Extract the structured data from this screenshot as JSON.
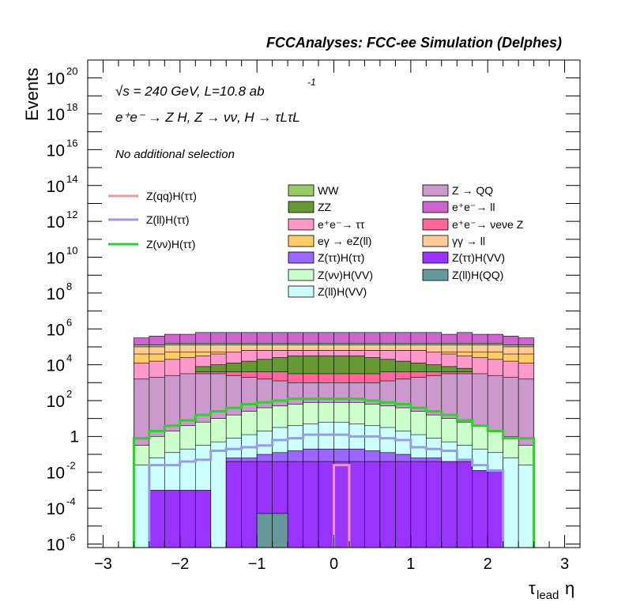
{
  "header": {
    "title": "FCCAnalyses: FCC-ee Simulation (Delphes)",
    "energy_line": "√s = 240 GeV, L=10.8 ab",
    "energy_sup": "-1",
    "process": "e⁺e⁻ → Z H, Z → νν, H → τLτL",
    "selection": "No additional selection"
  },
  "axes": {
    "ylabel": "Events",
    "xlabel_main": "τ",
    "xlabel_sub": "lead",
    "xlabel_tail": "η",
    "x_ticks": [
      -3,
      -2,
      -1,
      0,
      1,
      2,
      3
    ],
    "x_tick_labels": [
      "−3",
      "−2",
      "−1",
      "0",
      "1",
      "2",
      "3"
    ],
    "y_ticks": [
      {
        "exp": -6,
        "label": "10",
        "sup": "-6"
      },
      {
        "exp": -4,
        "label": "10",
        "sup": "-4"
      },
      {
        "exp": -2,
        "label": "10",
        "sup": "-2"
      },
      {
        "exp": 0,
        "label": "1",
        "sup": ""
      },
      {
        "exp": 2,
        "label": "10",
        "sup": "2"
      },
      {
        "exp": 4,
        "label": "10",
        "sup": "4"
      },
      {
        "exp": 6,
        "label": "10",
        "sup": "6"
      },
      {
        "exp": 8,
        "label": "10",
        "sup": "8"
      },
      {
        "exp": 10,
        "label": "10",
        "sup": "10"
      },
      {
        "exp": 12,
        "label": "10",
        "sup": "12"
      },
      {
        "exp": 14,
        "label": "10",
        "sup": "14"
      },
      {
        "exp": 16,
        "label": "10",
        "sup": "16"
      },
      {
        "exp": 18,
        "label": "10",
        "sup": "18"
      },
      {
        "exp": 20,
        "label": "10",
        "sup": "20"
      }
    ]
  },
  "legend_lines": [
    {
      "label": "Z(qq)H(ττ)",
      "color": "#f59a9a"
    },
    {
      "label": "Z(ll)H(ττ)",
      "color": "#9999ee"
    },
    {
      "label": "Z(νν)H(ττ)",
      "color": "#33cc33"
    }
  ],
  "legend_fills_col1": [
    {
      "label": "WW",
      "color": "#99cc66"
    },
    {
      "label": "ZZ",
      "color": "#669933"
    },
    {
      "label": "e⁺e⁻→ ττ",
      "color": "#ff99cc"
    },
    {
      "label": "eγ → eZ(ll)",
      "color": "#ffcc66"
    },
    {
      "label": "Z(ττ)H(ττ)",
      "color": "#9966ff"
    },
    {
      "label": "Z(νν)H(VV)",
      "color": "#ccffcc"
    },
    {
      "label": "Z(ll)H(VV)",
      "color": "#ccffff"
    }
  ],
  "legend_fills_col2": [
    {
      "label": "Z → QQ",
      "color": "#cc99cc"
    },
    {
      "label": "e⁺e⁻→ ll",
      "color": "#cc66cc"
    },
    {
      "label": "e⁺e⁻→ νeνe Z",
      "color": "#ff6699"
    },
    {
      "label": "γγ → ll",
      "color": "#ffcc99"
    },
    {
      "label": "Z(ττ)H(VV)",
      "color": "#9933ff"
    },
    {
      "label": "Z(ll)H(QQ)",
      "color": "#669999"
    }
  ],
  "chart_data": {
    "type": "histogram (stacked, log-y)",
    "xlim": [
      -3.2,
      3.2
    ],
    "ylim_log10": [
      -6.2,
      21
    ],
    "log_y": true,
    "grid": false,
    "bin_edges": [
      -2.6,
      -2.4,
      -2.2,
      -2.0,
      -1.8,
      -1.6,
      -1.4,
      -1.2,
      -1.0,
      -0.8,
      -0.6,
      -0.4,
      -0.2,
      0.0,
      0.2,
      0.4,
      0.6,
      0.8,
      1.0,
      1.2,
      1.4,
      1.6,
      1.8,
      2.0,
      2.2,
      2.4,
      2.6
    ],
    "stack_log10_tops": [
      {
        "name": "Z(ll)H(QQ)",
        "color": "#669999",
        "tops": [
          -99,
          -99,
          -99,
          -99,
          -99,
          -99,
          -99,
          -99,
          -4.3,
          -4.3,
          -99,
          -99,
          -99,
          -99,
          -99,
          -99,
          -99,
          -99,
          -99,
          -99,
          -99,
          -99,
          -99,
          -99,
          -99,
          -99
        ]
      },
      {
        "name": "Z(ττ)H(VV)",
        "color": "#9933ff",
        "tops": [
          -99,
          -3.0,
          -3.0,
          -3.0,
          -3.0,
          -99,
          -1.4,
          -1.4,
          -1.4,
          -1.4,
          -1.4,
          -1.4,
          -1.4,
          -1.4,
          -1.4,
          -1.4,
          -1.4,
          -1.4,
          -1.4,
          -1.4,
          -1.4,
          -1.4,
          -1.9,
          -1.9,
          -99,
          -99
        ]
      },
      {
        "name": "Z(ττ)H(ττ)",
        "color": "#9966ff",
        "tops": [
          -99,
          -99,
          -99,
          -99,
          -99,
          -99,
          -1.2,
          -1.2,
          -1.0,
          -0.9,
          -0.8,
          -0.7,
          -0.7,
          -0.7,
          -0.7,
          -0.8,
          -0.9,
          -1.0,
          -1.2,
          -1.2,
          -1.4,
          -1.4,
          -99,
          -99,
          -99,
          -99
        ]
      },
      {
        "name": "Z(ll)H(VV)",
        "color": "#ccffff",
        "tops": [
          -1.6,
          -1.2,
          -0.9,
          -0.7,
          -0.5,
          -0.3,
          -0.1,
          0.1,
          0.3,
          0.5,
          0.6,
          0.7,
          0.8,
          0.8,
          0.7,
          0.6,
          0.5,
          0.3,
          0.1,
          -0.1,
          -0.3,
          -0.5,
          -0.7,
          -0.9,
          -1.2,
          -1.6
        ]
      },
      {
        "name": "Z(νν)H(VV)",
        "color": "#ccffcc",
        "tops": [
          -0.5,
          0.0,
          0.3,
          0.6,
          0.8,
          1.0,
          1.2,
          1.4,
          1.6,
          1.7,
          1.8,
          1.9,
          1.9,
          1.9,
          1.9,
          1.8,
          1.7,
          1.6,
          1.4,
          1.2,
          1.0,
          0.8,
          0.6,
          0.3,
          0.0,
          -0.5
        ]
      },
      {
        "name": "Z → QQ",
        "color": "#cc99cc",
        "tops": [
          3.2,
          3.3,
          3.4,
          3.5,
          3.5,
          3.5,
          3.4,
          3.3,
          3.2,
          3.1,
          3.0,
          3.0,
          3.0,
          3.0,
          3.0,
          3.0,
          3.1,
          3.2,
          3.3,
          3.4,
          3.5,
          3.5,
          3.5,
          3.4,
          3.3,
          3.2
        ]
      },
      {
        "name": "e⁺e⁻→ νeνe Z",
        "color": "#ff6699",
        "tops": [
          -99,
          -99,
          -99,
          -99,
          3.6,
          3.6,
          3.6,
          3.6,
          3.6,
          3.6,
          3.5,
          3.5,
          3.5,
          3.5,
          3.5,
          3.5,
          3.6,
          3.6,
          3.6,
          3.6,
          3.6,
          3.6,
          -99,
          -99,
          -99,
          -99
        ]
      },
      {
        "name": "ZZ",
        "color": "#669933",
        "tops": [
          -99,
          -99,
          -99,
          -99,
          3.9,
          4.0,
          4.1,
          4.2,
          4.3,
          4.4,
          4.5,
          4.5,
          4.5,
          4.5,
          4.5,
          4.4,
          4.3,
          4.2,
          4.1,
          4.0,
          3.9,
          3.8,
          -99,
          -99,
          -99,
          -99
        ]
      },
      {
        "name": "e⁺e⁻→ ττ",
        "color": "#ff99cc",
        "tops": [
          4.1,
          4.2,
          4.3,
          4.4,
          4.5,
          4.6,
          4.7,
          4.8,
          4.8,
          4.8,
          4.8,
          4.8,
          4.8,
          4.8,
          4.8,
          4.8,
          4.8,
          4.8,
          4.8,
          4.7,
          4.6,
          4.5,
          4.4,
          4.3,
          4.2,
          4.1
        ]
      },
      {
        "name": "eγ → eZ(ll)",
        "color": "#ffcc66",
        "tops": [
          4.6,
          4.6,
          4.7,
          4.7,
          4.7,
          4.7,
          4.7,
          4.8,
          4.8,
          4.8,
          4.8,
          4.8,
          4.8,
          4.8,
          4.8,
          4.8,
          4.8,
          4.8,
          4.8,
          4.7,
          4.7,
          4.7,
          4.7,
          4.7,
          4.6,
          4.6
        ]
      },
      {
        "name": "γγ → ll",
        "color": "#ffcc99",
        "tops": [
          5.0,
          5.0,
          5.1,
          5.1,
          5.1,
          5.1,
          5.1,
          5.1,
          5.1,
          5.1,
          5.1,
          5.1,
          5.1,
          5.1,
          5.1,
          5.1,
          5.1,
          5.1,
          5.1,
          5.1,
          5.1,
          5.1,
          5.1,
          5.1,
          5.0,
          5.0
        ]
      },
      {
        "name": "WW",
        "color": "#99cc66",
        "tops": [
          5.1,
          5.1,
          5.2,
          5.2,
          5.2,
          5.2,
          5.2,
          5.2,
          5.2,
          5.2,
          5.2,
          5.2,
          5.2,
          5.2,
          5.2,
          5.2,
          5.2,
          5.2,
          5.2,
          5.2,
          5.2,
          5.2,
          5.2,
          5.2,
          5.1,
          5.1
        ]
      },
      {
        "name": "e⁺e⁻→ ll",
        "color": "#cc66cc",
        "tops": [
          5.5,
          5.6,
          5.7,
          5.7,
          5.8,
          5.8,
          5.8,
          5.8,
          5.8,
          5.8,
          5.8,
          5.8,
          5.8,
          5.8,
          5.8,
          5.8,
          5.8,
          5.8,
          5.8,
          5.8,
          5.7,
          5.8,
          5.7,
          5.7,
          5.6,
          5.5
        ]
      }
    ],
    "signal_lines": [
      {
        "name": "Z(qq)H(ττ)",
        "color": "#f59a9a",
        "edges": [
          0.0,
          0.2
        ],
        "log10": [
          -1.6
        ]
      },
      {
        "name": "Z(ll)H(ττ)",
        "color": "#9999ee",
        "edges": [
          -2.4,
          -2.2,
          -2.0,
          -1.8,
          -1.6,
          -1.4,
          -1.2,
          -1.0,
          -0.8,
          -0.6,
          -0.4,
          -0.2,
          0.0,
          0.2,
          0.4,
          0.6,
          0.8,
          1.0,
          1.2,
          1.4,
          1.6,
          1.8,
          2.0,
          2.2
        ],
        "log10": [
          -1.6,
          -1.6,
          -1.4,
          -1.3,
          -0.8,
          -0.7,
          -0.6,
          -0.5,
          -0.2,
          -0.1,
          0.1,
          0.1,
          0.1,
          0.0,
          0.0,
          -0.1,
          -0.2,
          -0.6,
          -0.7,
          -0.8,
          -1.3,
          -1.6,
          -1.9
        ]
      },
      {
        "name": "Z(νν)H(ττ)",
        "color": "#33cc33",
        "edges": [
          -2.6,
          -2.4,
          -2.2,
          -2.0,
          -1.8,
          -1.6,
          -1.4,
          -1.2,
          -1.0,
          -0.8,
          -0.6,
          -0.4,
          -0.2,
          0.0,
          0.2,
          0.4,
          0.6,
          0.8,
          1.0,
          1.2,
          1.4,
          1.6,
          1.8,
          2.0,
          2.2,
          2.4,
          2.6
        ],
        "log10": [
          -0.1,
          0.3,
          0.6,
          0.9,
          1.2,
          1.4,
          1.6,
          1.8,
          1.9,
          2.0,
          2.1,
          2.1,
          2.1,
          2.1,
          2.1,
          2.0,
          1.9,
          1.8,
          1.6,
          1.4,
          1.2,
          0.9,
          0.6,
          0.3,
          -0.1,
          -0.1
        ]
      }
    ]
  }
}
